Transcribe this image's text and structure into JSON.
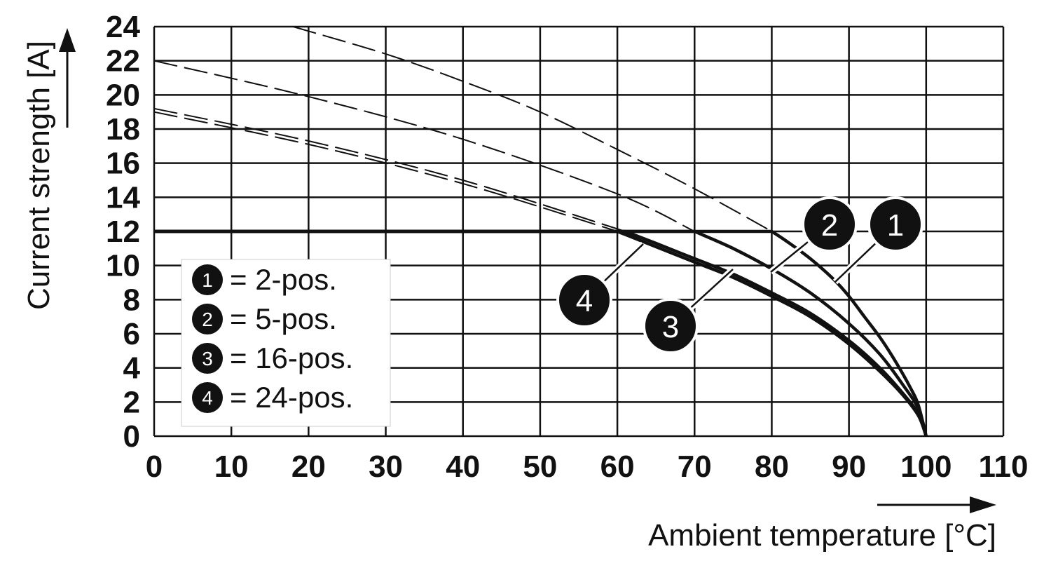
{
  "chart_data": {
    "type": "line",
    "title": "",
    "xlabel": "Ambient temperature [°C]",
    "ylabel": "Current strength [A]",
    "xlim": [
      0,
      110
    ],
    "ylim": [
      0,
      24
    ],
    "xticks": [
      "0",
      "10",
      "20",
      "30",
      "40",
      "50",
      "60",
      "70",
      "80",
      "90",
      "100",
      "110"
    ],
    "yticks": [
      "0",
      "2",
      "4",
      "6",
      "8",
      "10",
      "12",
      "14",
      "16",
      "18",
      "20",
      "22",
      "24"
    ],
    "grid": true,
    "current_limit": 12,
    "legend_placement": "lower-left",
    "legend": [
      {
        "marker": "1",
        "text": "= 2-pos."
      },
      {
        "marker": "2",
        "text": "= 5-pos."
      },
      {
        "marker": "3",
        "text": "= 16-pos."
      },
      {
        "marker": "4",
        "text": "= 24-pos."
      }
    ],
    "series": [
      {
        "name": "1",
        "line": "derating",
        "x": [
          0,
          80,
          82,
          85,
          88,
          90,
          92,
          94,
          96,
          98,
          99,
          100
        ],
        "y": [
          12,
          12,
          11.4,
          10.4,
          9.2,
          8.2,
          7.0,
          5.8,
          4.4,
          2.8,
          1.8,
          0
        ]
      },
      {
        "name": "2",
        "line": "derating",
        "x": [
          0,
          70,
          75,
          80,
          85,
          90,
          94,
          97,
          99,
          100
        ],
        "y": [
          12,
          12,
          11.0,
          9.8,
          8.4,
          6.6,
          4.8,
          3.0,
          1.6,
          0
        ]
      },
      {
        "name": "3",
        "line": "derating",
        "x": [
          0,
          61,
          65,
          70,
          75,
          80,
          85,
          90,
          94,
          97,
          99,
          100
        ],
        "y": [
          12,
          12,
          11.3,
          10.4,
          9.5,
          8.4,
          7.2,
          5.6,
          4.0,
          2.5,
          1.3,
          0
        ]
      },
      {
        "name": "4",
        "line": "derating",
        "x": [
          0,
          60,
          65,
          70,
          75,
          80,
          85,
          90,
          94,
          97,
          99,
          100
        ],
        "y": [
          12,
          12,
          11.1,
          10.2,
          9.3,
          8.2,
          7.0,
          5.4,
          3.8,
          2.4,
          1.2,
          0
        ]
      },
      {
        "name": "1",
        "line": "dashed",
        "x": [
          18,
          30,
          40,
          50,
          60,
          70,
          80
        ],
        "y": [
          24,
          22.4,
          20.8,
          19.0,
          16.8,
          14.5,
          12
        ]
      },
      {
        "name": "2",
        "line": "dashed",
        "x": [
          0,
          20,
          40,
          60,
          70
        ],
        "y": [
          22,
          19.9,
          17.4,
          14.2,
          12
        ]
      },
      {
        "name": "3",
        "line": "dashed",
        "x": [
          0,
          20,
          40,
          61
        ],
        "y": [
          19.2,
          17.3,
          15.0,
          12
        ]
      },
      {
        "name": "4",
        "line": "dashed",
        "x": [
          0,
          20,
          40,
          60
        ],
        "y": [
          19.0,
          17.1,
          14.8,
          12
        ]
      }
    ],
    "callouts": [
      "1",
      "2",
      "3",
      "4"
    ]
  }
}
